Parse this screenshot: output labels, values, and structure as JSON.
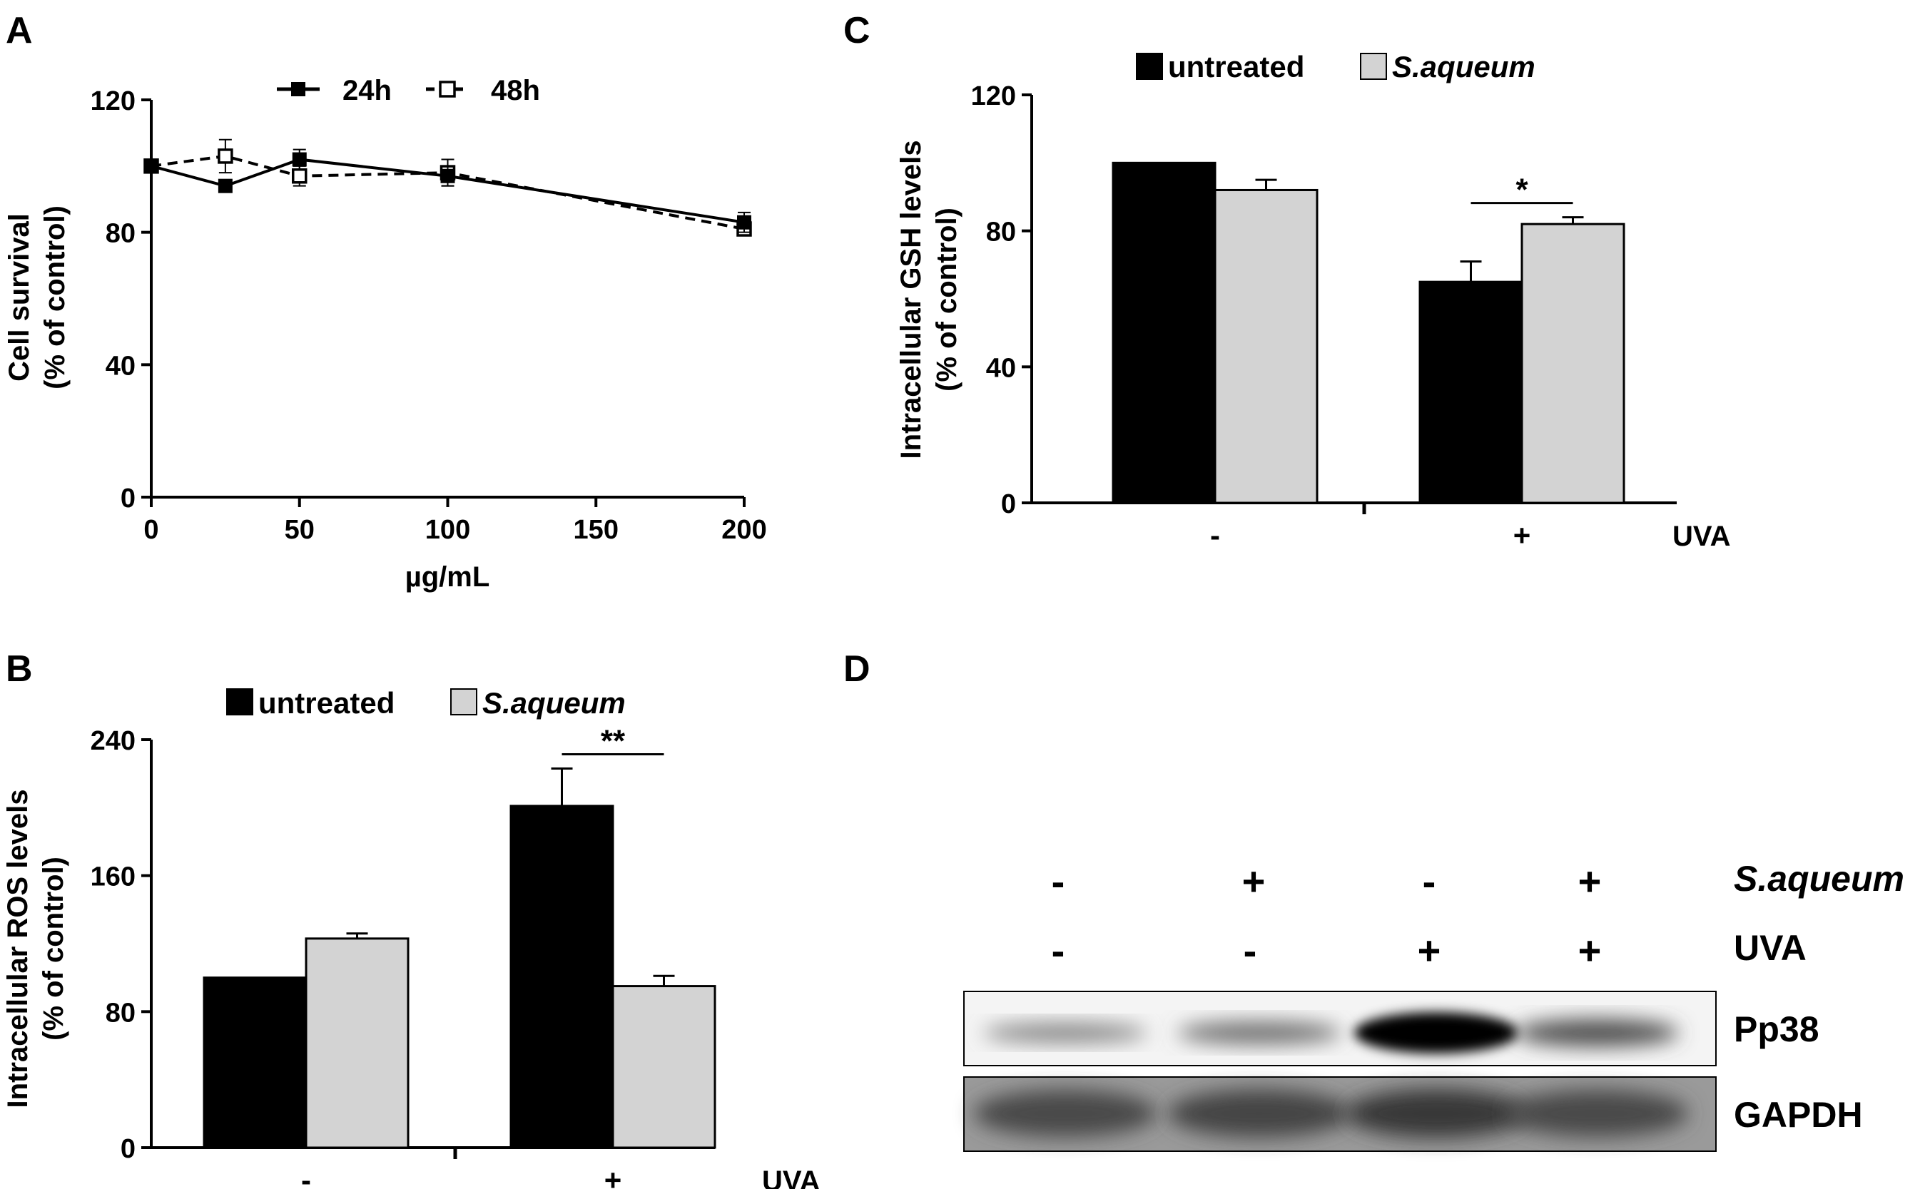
{
  "chart_data": [
    {
      "panel": "A",
      "type": "line",
      "x": [
        0,
        25,
        50,
        100,
        200
      ],
      "series": [
        {
          "name": "24h",
          "values": [
            100,
            94,
            102,
            97,
            83
          ],
          "errors": [
            1,
            1,
            3,
            3,
            3
          ],
          "style": "solid",
          "marker": "filled-square",
          "color": "#000000"
        },
        {
          "name": "48h",
          "values": [
            100,
            103,
            97,
            98,
            81
          ],
          "errors": [
            1,
            5,
            3,
            4,
            2
          ],
          "style": "dashed",
          "marker": "open-square",
          "color": "#000000"
        }
      ],
      "xlabel": "µg/mL",
      "ylabel": [
        "Cell survival",
        "(% of control)"
      ],
      "xticks": [
        "0",
        "50",
        "100",
        "150",
        "200"
      ],
      "yticks": [
        "0",
        "40",
        "80",
        "120"
      ],
      "xlim": [
        0,
        200
      ],
      "ylim": [
        0,
        120
      ],
      "legend_position": "top-center"
    },
    {
      "panel": "B",
      "type": "bar",
      "categories": [
        "-",
        "+"
      ],
      "condition_label": "UVA",
      "series": [
        {
          "name": "untreated",
          "values": [
            100,
            201
          ],
          "errors": [
            0,
            22
          ],
          "color": "#000000"
        },
        {
          "name": "S.aqueum",
          "values": [
            123,
            95
          ],
          "errors": [
            3,
            6
          ],
          "color": "#d3d3d3"
        }
      ],
      "ylabel": [
        "Intracellular ROS levels",
        "(% of control)"
      ],
      "yticks": [
        "0",
        "80",
        "160",
        "240"
      ],
      "ylim": [
        0,
        240
      ],
      "significance": {
        "group": 1,
        "label": "**"
      },
      "legend_position": "top-left"
    },
    {
      "panel": "C",
      "type": "bar",
      "categories": [
        "-",
        "+"
      ],
      "condition_label": "UVA",
      "series": [
        {
          "name": "untreated",
          "values": [
            100,
            65
          ],
          "errors": [
            0,
            6
          ],
          "color": "#000000"
        },
        {
          "name": "S.aqueum",
          "values": [
            92,
            82
          ],
          "errors": [
            3,
            2
          ],
          "color": "#d3d3d3"
        }
      ],
      "ylabel": [
        "Intracellular GSH levels",
        "(% of control)"
      ],
      "yticks": [
        "0",
        "40",
        "80",
        "120"
      ],
      "ylim": [
        0,
        120
      ],
      "significance": {
        "group": 1,
        "label": "*"
      },
      "legend_position": "top-left"
    }
  ],
  "panel_labels": {
    "A": "A",
    "B": "B",
    "C": "C",
    "D": "D"
  },
  "blot": {
    "treatments": [
      {
        "label": "S.aqueum",
        "values": [
          "-",
          "+",
          "-",
          "+"
        ]
      },
      {
        "label": "UVA",
        "values": [
          "-",
          "-",
          "+",
          "+"
        ]
      }
    ],
    "proteins": [
      {
        "label": "Pp38",
        "intensity": [
          0.35,
          0.45,
          1.0,
          0.6
        ]
      },
      {
        "label": "GAPDH",
        "intensity": [
          0.7,
          0.75,
          0.85,
          0.7
        ]
      }
    ]
  }
}
